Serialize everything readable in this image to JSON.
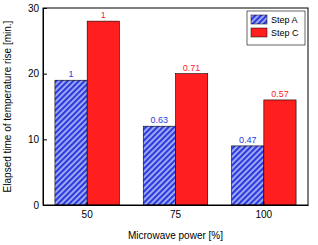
{
  "chart_data": {
    "type": "bar",
    "x_label": "Microwave power [%]",
    "y_label": "Elapsed time of temperature rise [min.]",
    "categories": [
      "50",
      "75",
      "100"
    ],
    "series": [
      {
        "name": "Step A",
        "color": "#2b3be0",
        "values": [
          19,
          12,
          9
        ],
        "labels": [
          "1",
          "0.63",
          "0.47"
        ]
      },
      {
        "name": "Step C",
        "color": "#ff1f1f",
        "values": [
          28,
          20,
          16
        ],
        "labels": [
          "1",
          "0.71",
          "0.57"
        ]
      }
    ],
    "ylim": [
      0,
      30
    ],
    "yticks": [
      0,
      10,
      20,
      30
    ],
    "grid": false,
    "legend": "upper right"
  }
}
